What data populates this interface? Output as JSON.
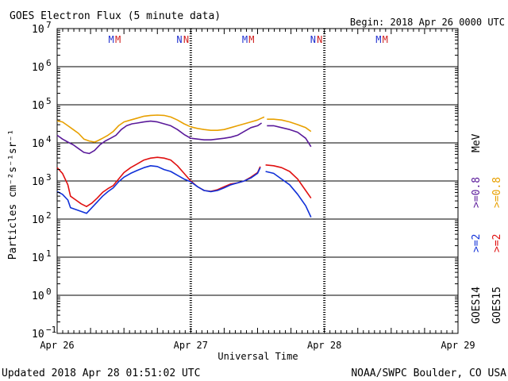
{
  "chart_data": {
    "type": "line",
    "title": "GOES Electron Flux (5 minute data)",
    "begin_label": "Begin: 2018 Apr 26 0000 UTC",
    "xlabel": "Universal Time",
    "ylabel": "Particles cm⁻²s⁻¹sr⁻¹",
    "x_unit": "days since 2018 Apr 26 0000 UTC",
    "xlim": [
      0,
      3
    ],
    "ylim_log10": [
      -1,
      7
    ],
    "x_ticks": [
      {
        "x": 0,
        "label": "Apr 26"
      },
      {
        "x": 1,
        "label": "Apr 27"
      },
      {
        "x": 2,
        "label": "Apr 28"
      },
      {
        "x": 3,
        "label": "Apr 29"
      }
    ],
    "y_ticks": [
      {
        "exp": 7,
        "label": "10",
        "sup": "7"
      },
      {
        "exp": 6,
        "label": "10",
        "sup": "6"
      },
      {
        "exp": 5,
        "label": "10",
        "sup": "5"
      },
      {
        "exp": 4,
        "label": "10",
        "sup": "4"
      },
      {
        "exp": 3,
        "label": "10",
        "sup": "3"
      },
      {
        "exp": 2,
        "label": "10",
        "sup": "2"
      },
      {
        "exp": 1,
        "label": "10",
        "sup": "1"
      },
      {
        "exp": 0,
        "label": "10",
        "sup": "0"
      },
      {
        "exp": -1,
        "label": "10",
        "sup": "−1"
      }
    ],
    "threshold_log10": 3,
    "noon_markers": [
      {
        "x": 0.405,
        "label": "M",
        "color": "#2030d0"
      },
      {
        "x": 0.455,
        "label": "M",
        "color": "#d02020"
      },
      {
        "x": 0.915,
        "label": "N",
        "color": "#2030d0"
      },
      {
        "x": 0.965,
        "label": "N",
        "color": "#d02020"
      },
      {
        "x": 1.405,
        "label": "M",
        "color": "#2030d0"
      },
      {
        "x": 1.455,
        "label": "M",
        "color": "#d02020"
      },
      {
        "x": 1.915,
        "label": "N",
        "color": "#2030d0"
      },
      {
        "x": 1.965,
        "label": "N",
        "color": "#d02020"
      },
      {
        "x": 2.405,
        "label": "M",
        "color": "#2030d0"
      },
      {
        "x": 2.455,
        "label": "M",
        "color": "#d02020"
      }
    ],
    "series": [
      {
        "name": "GOES15 >=0.8 MeV",
        "color": "#e8a000",
        "points": [
          [
            0,
            4.58
          ],
          [
            0.04,
            4.55
          ],
          [
            0.08,
            4.45
          ],
          [
            0.12,
            4.35
          ],
          [
            0.16,
            4.25
          ],
          [
            0.2,
            4.1
          ],
          [
            0.24,
            4.05
          ],
          [
            0.28,
            4.02
          ],
          [
            0.3,
            4.05
          ],
          [
            0.34,
            4.12
          ],
          [
            0.38,
            4.2
          ],
          [
            0.42,
            4.3
          ],
          [
            0.46,
            4.45
          ],
          [
            0.5,
            4.55
          ],
          [
            0.55,
            4.6
          ],
          [
            0.6,
            4.65
          ],
          [
            0.65,
            4.7
          ],
          [
            0.7,
            4.72
          ],
          [
            0.75,
            4.73
          ],
          [
            0.8,
            4.72
          ],
          [
            0.85,
            4.68
          ],
          [
            0.9,
            4.6
          ],
          [
            0.95,
            4.5
          ],
          [
            1.0,
            4.42
          ],
          [
            1.05,
            4.38
          ],
          [
            1.1,
            4.35
          ],
          [
            1.15,
            4.33
          ],
          [
            1.2,
            4.33
          ],
          [
            1.25,
            4.35
          ],
          [
            1.3,
            4.4
          ],
          [
            1.35,
            4.45
          ],
          [
            1.4,
            4.5
          ],
          [
            1.45,
            4.55
          ],
          [
            1.5,
            4.6
          ],
          [
            1.53,
            4.65
          ],
          [
            1.55,
            4.68
          ],
          [
            null,
            null
          ],
          [
            1.57,
            4.62
          ],
          [
            1.62,
            4.62
          ],
          [
            1.68,
            4.6
          ],
          [
            1.74,
            4.55
          ],
          [
            1.8,
            4.48
          ],
          [
            1.86,
            4.4
          ],
          [
            1.9,
            4.3
          ]
        ]
      },
      {
        "name": "GOES14 >=0.8 MeV",
        "color": "#5a1a9a",
        "points": [
          [
            0,
            4.2
          ],
          [
            0.04,
            4.1
          ],
          [
            0.08,
            4.02
          ],
          [
            0.12,
            3.95
          ],
          [
            0.16,
            3.85
          ],
          [
            0.2,
            3.75
          ],
          [
            0.24,
            3.72
          ],
          [
            0.28,
            3.8
          ],
          [
            0.32,
            3.95
          ],
          [
            0.36,
            4.05
          ],
          [
            0.4,
            4.12
          ],
          [
            0.44,
            4.2
          ],
          [
            0.48,
            4.35
          ],
          [
            0.52,
            4.45
          ],
          [
            0.56,
            4.5
          ],
          [
            0.6,
            4.52
          ],
          [
            0.65,
            4.55
          ],
          [
            0.7,
            4.57
          ],
          [
            0.75,
            4.55
          ],
          [
            0.8,
            4.5
          ],
          [
            0.85,
            4.45
          ],
          [
            0.9,
            4.35
          ],
          [
            0.95,
            4.22
          ],
          [
            1.0,
            4.12
          ],
          [
            1.05,
            4.1
          ],
          [
            1.1,
            4.08
          ],
          [
            1.15,
            4.08
          ],
          [
            1.2,
            4.1
          ],
          [
            1.25,
            4.12
          ],
          [
            1.3,
            4.15
          ],
          [
            1.35,
            4.2
          ],
          [
            1.4,
            4.3
          ],
          [
            1.45,
            4.4
          ],
          [
            1.5,
            4.45
          ],
          [
            1.53,
            4.52
          ],
          [
            null,
            null
          ],
          [
            1.57,
            4.45
          ],
          [
            1.62,
            4.45
          ],
          [
            1.68,
            4.4
          ],
          [
            1.74,
            4.35
          ],
          [
            1.8,
            4.28
          ],
          [
            1.86,
            4.12
          ],
          [
            1.9,
            3.9
          ]
        ]
      },
      {
        "name": "GOES15 >=2 MeV",
        "color": "#e01010",
        "points": [
          [
            0,
            3.35
          ],
          [
            0.04,
            3.2
          ],
          [
            0.08,
            2.9
          ],
          [
            0.1,
            2.6
          ],
          [
            0.14,
            2.5
          ],
          [
            0.18,
            2.4
          ],
          [
            0.22,
            2.33
          ],
          [
            0.26,
            2.42
          ],
          [
            0.3,
            2.55
          ],
          [
            0.34,
            2.7
          ],
          [
            0.38,
            2.8
          ],
          [
            0.42,
            2.88
          ],
          [
            0.46,
            3.05
          ],
          [
            0.5,
            3.22
          ],
          [
            0.55,
            3.35
          ],
          [
            0.6,
            3.45
          ],
          [
            0.65,
            3.55
          ],
          [
            0.7,
            3.6
          ],
          [
            0.75,
            3.62
          ],
          [
            0.8,
            3.6
          ],
          [
            0.85,
            3.55
          ],
          [
            0.9,
            3.4
          ],
          [
            0.95,
            3.2
          ],
          [
            1.0,
            3.0
          ],
          [
            1.05,
            2.85
          ],
          [
            1.1,
            2.75
          ],
          [
            1.15,
            2.73
          ],
          [
            1.2,
            2.77
          ],
          [
            1.25,
            2.85
          ],
          [
            1.3,
            2.92
          ],
          [
            1.35,
            2.95
          ],
          [
            1.4,
            3.0
          ],
          [
            1.45,
            3.1
          ],
          [
            1.5,
            3.22
          ],
          [
            1.52,
            3.38
          ],
          [
            null,
            null
          ],
          [
            1.56,
            3.42
          ],
          [
            1.62,
            3.4
          ],
          [
            1.68,
            3.35
          ],
          [
            1.74,
            3.25
          ],
          [
            1.8,
            3.05
          ],
          [
            1.86,
            2.75
          ],
          [
            1.9,
            2.55
          ]
        ]
      },
      {
        "name": "GOES14 >=2 MeV",
        "color": "#1030d8",
        "points": [
          [
            0,
            2.72
          ],
          [
            0.04,
            2.65
          ],
          [
            0.08,
            2.5
          ],
          [
            0.1,
            2.3
          ],
          [
            0.14,
            2.25
          ],
          [
            0.18,
            2.2
          ],
          [
            0.22,
            2.15
          ],
          [
            0.26,
            2.3
          ],
          [
            0.3,
            2.45
          ],
          [
            0.34,
            2.6
          ],
          [
            0.38,
            2.72
          ],
          [
            0.42,
            2.82
          ],
          [
            0.46,
            2.98
          ],
          [
            0.5,
            3.1
          ],
          [
            0.55,
            3.2
          ],
          [
            0.6,
            3.28
          ],
          [
            0.65,
            3.35
          ],
          [
            0.7,
            3.4
          ],
          [
            0.75,
            3.38
          ],
          [
            0.8,
            3.3
          ],
          [
            0.85,
            3.25
          ],
          [
            0.9,
            3.15
          ],
          [
            0.95,
            3.05
          ],
          [
            1.0,
            2.98
          ],
          [
            1.05,
            2.85
          ],
          [
            1.1,
            2.75
          ],
          [
            1.15,
            2.72
          ],
          [
            1.2,
            2.75
          ],
          [
            1.25,
            2.82
          ],
          [
            1.3,
            2.9
          ],
          [
            1.35,
            2.95
          ],
          [
            1.4,
            3.0
          ],
          [
            1.45,
            3.08
          ],
          [
            1.5,
            3.2
          ],
          [
            1.52,
            3.35
          ],
          [
            null,
            null
          ],
          [
            1.56,
            3.25
          ],
          [
            1.62,
            3.2
          ],
          [
            1.68,
            3.05
          ],
          [
            1.74,
            2.9
          ],
          [
            1.8,
            2.65
          ],
          [
            1.86,
            2.35
          ],
          [
            1.9,
            2.05
          ]
        ]
      }
    ],
    "legend": {
      "placement": "right",
      "goes14": "GOES14",
      "goes15": "GOES15",
      "ge2": ">=2",
      "ge08": ">=0.8",
      "mev": "MeV"
    }
  },
  "footer": {
    "updated": "Updated 2018 Apr 28 01:51:02 UTC",
    "credit": "NOAA/SWPC Boulder, CO USA"
  },
  "colors": {
    "goes14_ge2": "#1030d8",
    "goes15_ge2": "#e01010",
    "goes14_ge08": "#5a1a9a",
    "goes15_ge08": "#e8a000"
  }
}
